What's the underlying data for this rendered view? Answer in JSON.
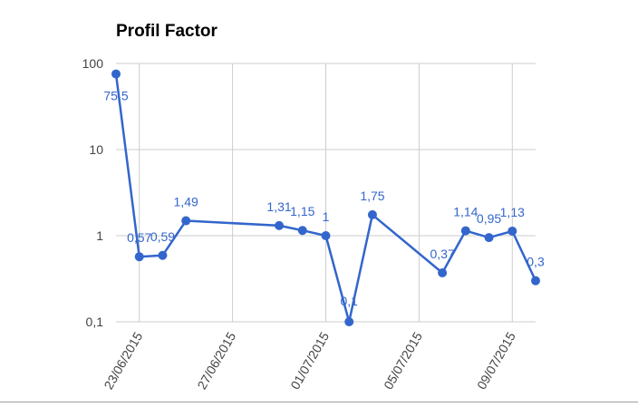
{
  "chart_data": {
    "type": "line",
    "title": "Profil Factor",
    "xlabel": "",
    "ylabel": "",
    "y_scale": "log",
    "ylim": [
      0.1,
      100
    ],
    "y_ticks": [
      {
        "value": 0.1,
        "label": "0,1"
      },
      {
        "value": 1,
        "label": "1"
      },
      {
        "value": 10,
        "label": "10"
      },
      {
        "value": 100,
        "label": "100"
      }
    ],
    "x_ticks": [
      {
        "value": "2015-06-23",
        "label": "23/06/2015"
      },
      {
        "value": "2015-06-27",
        "label": "27/06/2015"
      },
      {
        "value": "2015-07-01",
        "label": "01/07/2015"
      },
      {
        "value": "2015-07-05",
        "label": "05/07/2015"
      },
      {
        "value": "2015-07-09",
        "label": "09/07/2015"
      }
    ],
    "xlim": [
      "2015-06-22",
      "2015-07-10"
    ],
    "grid": true,
    "color": "#3366cc",
    "series": [
      {
        "points": [
          {
            "x": "2015-06-22",
            "y": 75.5,
            "label": "75,5"
          },
          {
            "x": "2015-06-23",
            "y": 0.57,
            "label": "0,57"
          },
          {
            "x": "2015-06-24",
            "y": 0.59,
            "label": "0,59"
          },
          {
            "x": "2015-06-25",
            "y": 1.49,
            "label": "1,49"
          },
          {
            "x": "2015-06-29",
            "y": 1.31,
            "label": "1,31"
          },
          {
            "x": "2015-06-30",
            "y": 1.15,
            "label": "1,15"
          },
          {
            "x": "2015-07-01",
            "y": 1,
            "label": "1"
          },
          {
            "x": "2015-07-02",
            "y": 0.1,
            "label": "0,1"
          },
          {
            "x": "2015-07-03",
            "y": 1.75,
            "label": "1,75"
          },
          {
            "x": "2015-07-06",
            "y": 0.37,
            "label": "0,37"
          },
          {
            "x": "2015-07-07",
            "y": 1.14,
            "label": "1,14"
          },
          {
            "x": "2015-07-08",
            "y": 0.95,
            "label": "0,95"
          },
          {
            "x": "2015-07-09",
            "y": 1.13,
            "label": "1,13"
          },
          {
            "x": "2015-07-10",
            "y": 0.3,
            "label": "0,3"
          }
        ]
      }
    ]
  }
}
